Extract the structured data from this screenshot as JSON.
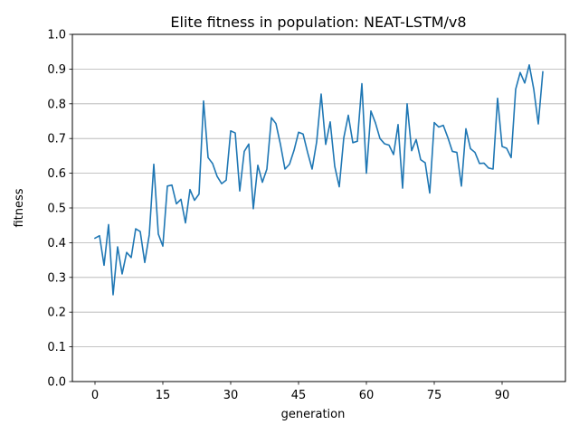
{
  "chart_data": {
    "type": "line",
    "title": "Elite fitness in population: NEAT-LSTM/v8",
    "xlabel": "generation",
    "ylabel": "fitness",
    "xlim": [
      -5.0,
      104.0
    ],
    "ylim": [
      0.0,
      1.0
    ],
    "xticks": [
      0,
      15,
      30,
      45,
      60,
      75,
      90
    ],
    "yticks": [
      0.0,
      0.1,
      0.2,
      0.3,
      0.4,
      0.5,
      0.6,
      0.7,
      0.8,
      0.9,
      1.0
    ],
    "ytick_labels": [
      "0.0",
      "0.1",
      "0.2",
      "0.3",
      "0.4",
      "0.5",
      "0.6",
      "0.7",
      "0.8",
      "0.9",
      "1.0"
    ],
    "grid": "horizontal",
    "line_color": "#1f77b4",
    "x": [
      0,
      1,
      2,
      3,
      4,
      5,
      6,
      7,
      8,
      9,
      10,
      11,
      12,
      13,
      14,
      15,
      16,
      17,
      18,
      19,
      20,
      21,
      22,
      23,
      24,
      25,
      26,
      27,
      28,
      29,
      30,
      31,
      32,
      33,
      34,
      35,
      36,
      37,
      38,
      39,
      40,
      41,
      42,
      43,
      44,
      45,
      46,
      47,
      48,
      49,
      50,
      51,
      52,
      53,
      54,
      55,
      56,
      57,
      58,
      59,
      60,
      61,
      62,
      63,
      64,
      65,
      66,
      67,
      68,
      69,
      70,
      71,
      72,
      73,
      74,
      75,
      76,
      77,
      78,
      79,
      80,
      81,
      82,
      83,
      84,
      85,
      86,
      87,
      88,
      89,
      90,
      91,
      92,
      93,
      94,
      95,
      96,
      97,
      98,
      99
    ],
    "values": [
      0.413,
      0.42,
      0.335,
      0.452,
      0.25,
      0.388,
      0.31,
      0.372,
      0.357,
      0.44,
      0.432,
      0.343,
      0.423,
      0.626,
      0.425,
      0.39,
      0.563,
      0.566,
      0.512,
      0.525,
      0.457,
      0.553,
      0.522,
      0.54,
      0.808,
      0.645,
      0.628,
      0.591,
      0.57,
      0.58,
      0.722,
      0.716,
      0.549,
      0.663,
      0.684,
      0.498,
      0.623,
      0.574,
      0.612,
      0.76,
      0.743,
      0.683,
      0.612,
      0.626,
      0.666,
      0.718,
      0.713,
      0.66,
      0.612,
      0.69,
      0.828,
      0.683,
      0.748,
      0.62,
      0.561,
      0.702,
      0.767,
      0.688,
      0.692,
      0.858,
      0.6,
      0.779,
      0.745,
      0.7,
      0.685,
      0.681,
      0.654,
      0.74,
      0.557,
      0.8,
      0.665,
      0.697,
      0.639,
      0.63,
      0.543,
      0.746,
      0.733,
      0.738,
      0.703,
      0.663,
      0.66,
      0.563,
      0.728,
      0.671,
      0.66,
      0.628,
      0.629,
      0.615,
      0.612,
      0.816,
      0.677,
      0.672,
      0.645,
      0.842,
      0.89,
      0.86,
      0.912,
      0.842,
      0.742,
      0.892
    ]
  }
}
